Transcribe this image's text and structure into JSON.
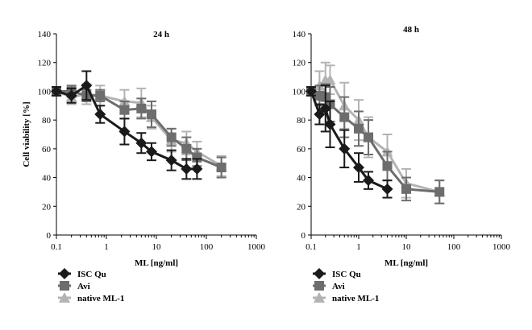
{
  "colors": {
    "ISC Qu": "#1a1a1a",
    "Avi": "#6d6d6d",
    "native ML-1": "#b3b3b3"
  },
  "legend": [
    "ISC Qu",
    "Avi",
    "native ML-1"
  ],
  "chart_data": [
    {
      "type": "line",
      "title": "24 h",
      "xlabel": "ML [ng/ml]",
      "ylabel": "Cell viability [%]",
      "xscale": "log",
      "xlim": [
        0.1,
        1000
      ],
      "ylim": [
        0,
        140
      ],
      "xticks": [
        "0.1",
        "1",
        "10",
        "100",
        "1000"
      ],
      "yticks": [
        "0",
        "20",
        "40",
        "60",
        "80",
        "100",
        "120",
        "140"
      ],
      "series": [
        {
          "name": "ISC Qu",
          "marker": "diamond",
          "x": [
            0.1,
            0.2,
            0.4,
            0.75,
            2.3,
            5,
            8,
            20,
            40,
            65
          ],
          "y": [
            100,
            97,
            104,
            84,
            72,
            64,
            58,
            52,
            46,
            46
          ],
          "err": [
            3,
            5,
            10,
            6,
            9,
            7,
            6,
            7,
            7,
            7
          ]
        },
        {
          "name": "Avi",
          "marker": "square",
          "x": [
            0.1,
            0.2,
            0.4,
            0.75,
            2.3,
            5,
            8,
            20,
            40,
            65,
            200
          ],
          "y": [
            100,
            100,
            97,
            97,
            87,
            88,
            84,
            68,
            60,
            54,
            47
          ],
          "err": [
            3,
            4,
            4,
            4,
            6,
            7,
            9,
            6,
            8,
            6,
            7
          ]
        },
        {
          "name": "native ML-1",
          "marker": "triangle",
          "x": [
            0.1,
            0.2,
            0.4,
            0.75,
            2.3,
            5,
            8,
            20,
            40,
            65,
            200
          ],
          "y": [
            100,
            96,
            98,
            97,
            93,
            92,
            82,
            66,
            64,
            58,
            48
          ],
          "err": [
            3,
            5,
            7,
            7,
            8,
            10,
            8,
            8,
            8,
            7,
            7
          ]
        }
      ]
    },
    {
      "type": "line",
      "title": "48 h",
      "xlabel": "ML [ng/ml]",
      "ylabel": "",
      "xscale": "log",
      "xlim": [
        0.1,
        1000
      ],
      "ylim": [
        0,
        140
      ],
      "xticks": [
        "0.1",
        "1",
        "10",
        "100",
        "1000"
      ],
      "yticks": [
        "0",
        "20",
        "40",
        "60",
        "80",
        "100",
        "120",
        "140"
      ],
      "series": [
        {
          "name": "ISC Qu",
          "marker": "diamond",
          "x": [
            0.1,
            0.15,
            0.2,
            0.25,
            0.5,
            1,
            1.6,
            4
          ],
          "y": [
            100,
            84,
            88,
            77,
            60,
            47,
            38,
            32
          ],
          "err": [
            3,
            7,
            16,
            16,
            13,
            10,
            6,
            6
          ]
        },
        {
          "name": "Avi",
          "marker": "square",
          "x": [
            0.1,
            0.15,
            0.2,
            0.25,
            0.5,
            1,
            1.6,
            4,
            10,
            50
          ],
          "y": [
            100,
            97,
            96,
            91,
            82,
            74,
            68,
            48,
            32,
            30
          ],
          "err": [
            3,
            7,
            9,
            12,
            14,
            12,
            12,
            10,
            8,
            8
          ]
        },
        {
          "name": "native ML-1",
          "marker": "triangle",
          "x": [
            0.1,
            0.15,
            0.2,
            0.25,
            0.5,
            1,
            1.6,
            4,
            10,
            50
          ],
          "y": [
            100,
            104,
            108,
            108,
            90,
            80,
            68,
            58,
            36,
            30
          ],
          "err": [
            3,
            10,
            12,
            10,
            16,
            14,
            14,
            12,
            10,
            8
          ]
        }
      ]
    }
  ]
}
